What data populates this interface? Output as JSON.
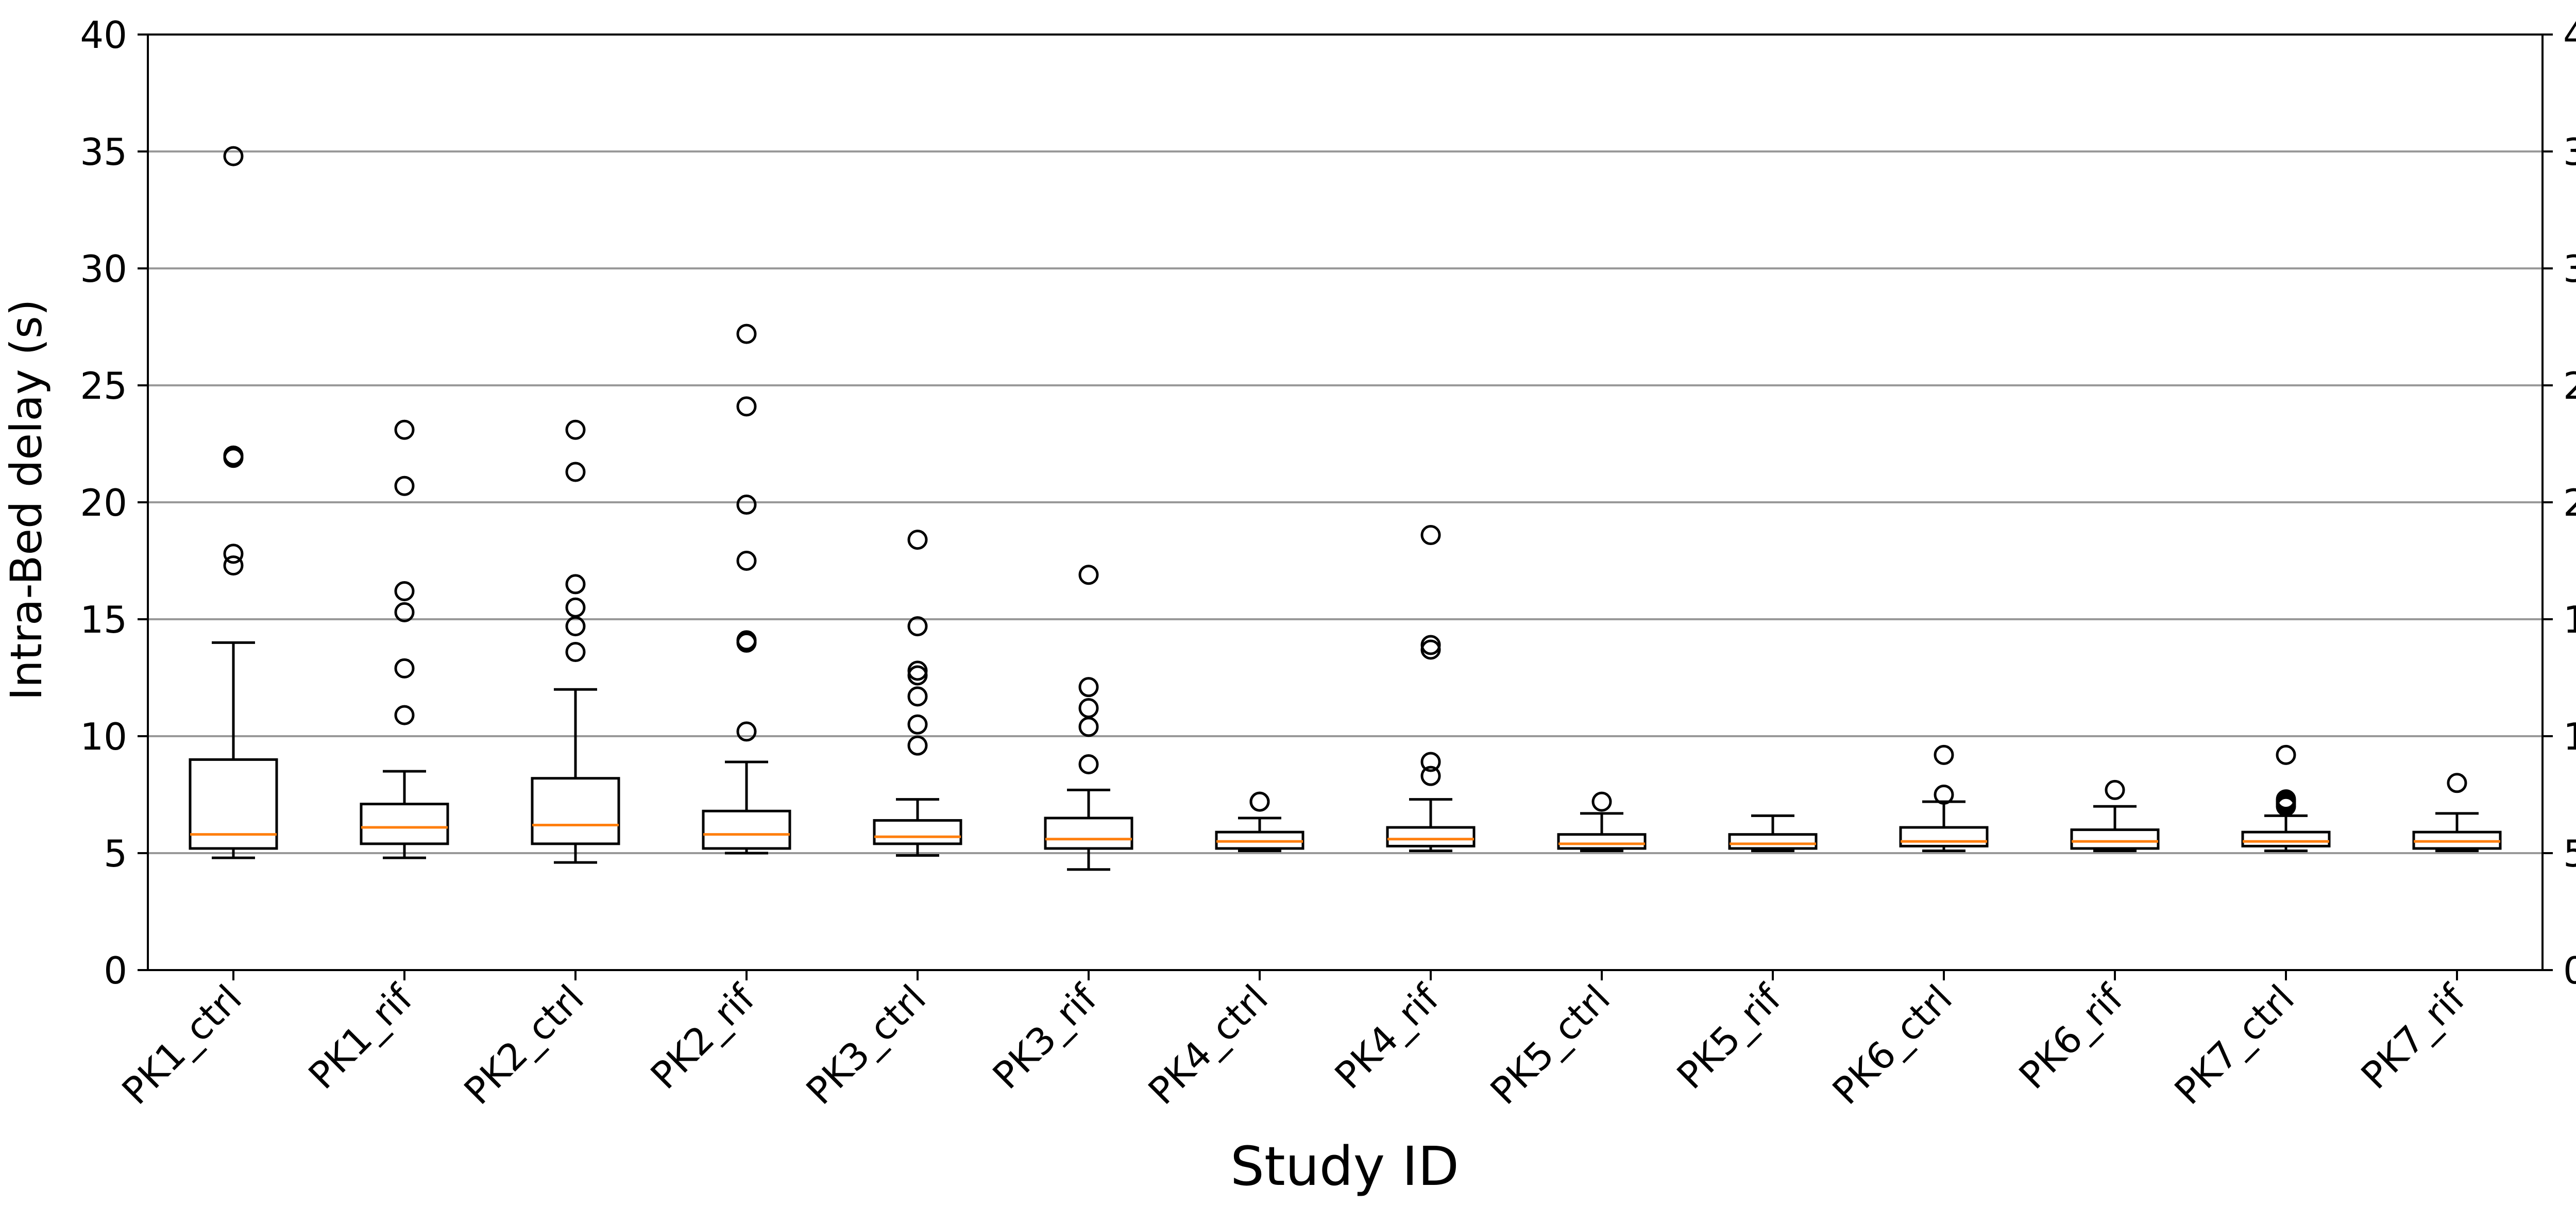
{
  "chart_data": {
    "type": "box",
    "xlabel": "Study ID",
    "ylabel": "Intra-Bed delay (s)",
    "ylim": [
      0,
      40
    ],
    "yticks": [
      0,
      5,
      10,
      15,
      20,
      25,
      30,
      35,
      40
    ],
    "y_tick_labels": [
      "0",
      "5",
      "10",
      "15",
      "20",
      "25",
      "30",
      "35",
      "40"
    ],
    "grid": "horizontal",
    "right_axis_labels": true,
    "colors": {
      "box": "#000000",
      "median": "#ff7f0e",
      "grid": "#999999",
      "flier": "#000000"
    },
    "categories": [
      "PK1_ctrl",
      "PK1_rif",
      "PK2_ctrl",
      "PK2_rif",
      "PK3_ctrl",
      "PK3_rif",
      "PK4_ctrl",
      "PK4_rif",
      "PK5_ctrl",
      "PK5_rif",
      "PK6_ctrl",
      "PK6_rif",
      "PK7_ctrl",
      "PK7_rif"
    ],
    "boxes": [
      {
        "category": "PK1_ctrl",
        "whisker_low": 4.8,
        "q1": 5.2,
        "median": 5.8,
        "q3": 9.0,
        "whisker_high": 14.0,
        "outliers": [
          34.8,
          22.0,
          21.9,
          17.8,
          17.3
        ]
      },
      {
        "category": "PK1_rif",
        "whisker_low": 4.8,
        "q1": 5.4,
        "median": 6.1,
        "q3": 7.1,
        "whisker_high": 8.5,
        "outliers": [
          23.1,
          20.7,
          16.2,
          15.3,
          12.9,
          10.9
        ]
      },
      {
        "category": "PK2_ctrl",
        "whisker_low": 4.6,
        "q1": 5.4,
        "median": 6.2,
        "q3": 8.2,
        "whisker_high": 12.0,
        "outliers": [
          23.1,
          21.3,
          16.5,
          15.5,
          14.7,
          13.6
        ]
      },
      {
        "category": "PK2_rif",
        "whisker_low": 5.0,
        "q1": 5.2,
        "median": 5.8,
        "q3": 6.8,
        "whisker_high": 8.9,
        "outliers": [
          27.2,
          24.1,
          19.9,
          17.5,
          14.1,
          14.0,
          10.2
        ]
      },
      {
        "category": "PK3_ctrl",
        "whisker_low": 4.9,
        "q1": 5.4,
        "median": 5.7,
        "q3": 6.4,
        "whisker_high": 7.3,
        "outliers": [
          18.4,
          14.7,
          12.8,
          12.6,
          11.7,
          10.5,
          9.6
        ]
      },
      {
        "category": "PK3_rif",
        "whisker_low": 4.3,
        "q1": 5.2,
        "median": 5.6,
        "q3": 6.5,
        "whisker_high": 7.7,
        "outliers": [
          16.9,
          12.1,
          11.2,
          10.4,
          8.8
        ]
      },
      {
        "category": "PK4_ctrl",
        "whisker_low": 5.1,
        "q1": 5.2,
        "median": 5.5,
        "q3": 5.9,
        "whisker_high": 6.5,
        "outliers": [
          7.2,
          7.2
        ]
      },
      {
        "category": "PK4_rif",
        "whisker_low": 5.1,
        "q1": 5.3,
        "median": 5.6,
        "q3": 6.1,
        "whisker_high": 7.3,
        "outliers": [
          18.6,
          13.9,
          13.7,
          8.9,
          8.3
        ]
      },
      {
        "category": "PK5_ctrl",
        "whisker_low": 5.1,
        "q1": 5.2,
        "median": 5.4,
        "q3": 5.8,
        "whisker_high": 6.7,
        "outliers": [
          7.2
        ]
      },
      {
        "category": "PK5_rif",
        "whisker_low": 5.1,
        "q1": 5.2,
        "median": 5.4,
        "q3": 5.8,
        "whisker_high": 6.6,
        "outliers": []
      },
      {
        "category": "PK6_ctrl",
        "whisker_low": 5.1,
        "q1": 5.3,
        "median": 5.5,
        "q3": 6.1,
        "whisker_high": 7.2,
        "outliers": [
          9.2,
          7.5
        ]
      },
      {
        "category": "PK6_rif",
        "whisker_low": 5.1,
        "q1": 5.2,
        "median": 5.5,
        "q3": 6.0,
        "whisker_high": 7.0,
        "outliers": [
          7.7
        ]
      },
      {
        "category": "PK7_ctrl",
        "whisker_low": 5.1,
        "q1": 5.3,
        "median": 5.5,
        "q3": 5.9,
        "whisker_high": 6.6,
        "outliers": [
          9.2,
          7.3,
          7.2,
          7.1,
          7.0
        ]
      },
      {
        "category": "PK7_rif",
        "whisker_low": 5.1,
        "q1": 5.2,
        "median": 5.5,
        "q3": 5.9,
        "whisker_high": 6.7,
        "outliers": [
          8.0
        ]
      }
    ]
  }
}
